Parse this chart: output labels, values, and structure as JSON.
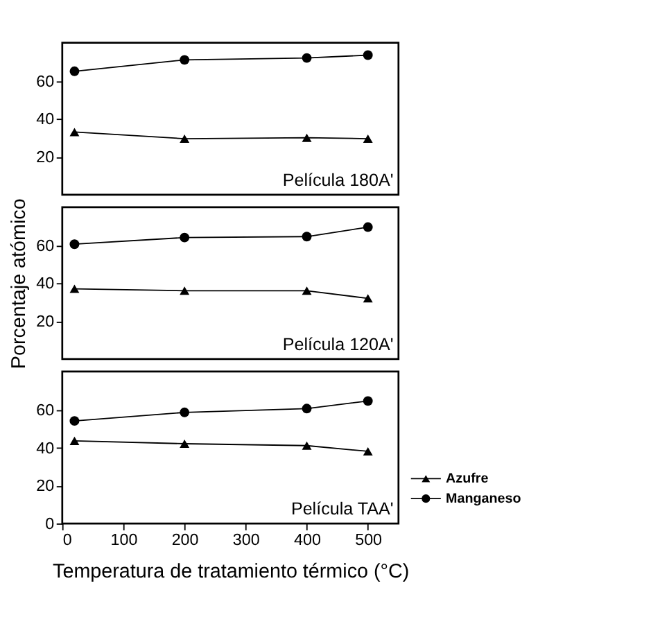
{
  "chart_data": [
    {
      "type": "line",
      "x": [
        20,
        200,
        400,
        500
      ],
      "xlim": [
        0,
        550
      ],
      "xticks": [
        0,
        100,
        200,
        300,
        400,
        500
      ],
      "ylim": [
        0,
        80
      ],
      "yticks": [
        20,
        40,
        60
      ],
      "tick_labels": "y",
      "grid": false,
      "annotations": [
        "Película 180A'"
      ],
      "series": [
        {
          "color": "#000000",
          "marker": "triangle",
          "values": [
            33,
            29.5,
            30,
            29.5
          ]
        },
        {
          "color": "#000000",
          "marker": "circle",
          "values": [
            65,
            71,
            72,
            73.5
          ]
        }
      ]
    },
    {
      "type": "line",
      "x": [
        20,
        200,
        400,
        500
      ],
      "xlim": [
        0,
        550
      ],
      "xticks": [
        0,
        100,
        200,
        300,
        400,
        500
      ],
      "ylim": [
        0,
        80
      ],
      "yticks": [
        20,
        40,
        60
      ],
      "tick_labels": "y",
      "grid": false,
      "ylabel": "Porcentaje atómico",
      "annotations": [
        "Película 120A'"
      ],
      "series": [
        {
          "color": "#000000",
          "marker": "triangle",
          "values": [
            37,
            36,
            36,
            32
          ]
        },
        {
          "color": "#000000",
          "marker": "circle",
          "values": [
            60.5,
            64,
            64.5,
            69.5
          ]
        }
      ]
    },
    {
      "type": "line",
      "x": [
        20,
        200,
        400,
        500
      ],
      "xlim": [
        0,
        550
      ],
      "xticks": [
        0,
        100,
        200,
        300,
        400,
        500
      ],
      "ylim": [
        0,
        80
      ],
      "yticks": [
        0,
        20,
        40,
        60
      ],
      "grid": false,
      "legend": "right",
      "xlabel": "Temperatura de tratamiento térmico (°C)",
      "annotations": [
        "Película TAA'"
      ],
      "series": [
        {
          "name": "Azufre",
          "color": "#000000",
          "marker": "triangle",
          "values": [
            43.5,
            42,
            41,
            38
          ]
        },
        {
          "name": "Manganeso",
          "color": "#000000",
          "marker": "circle",
          "values": [
            54,
            58.5,
            60.5,
            64.5
          ]
        }
      ]
    }
  ]
}
